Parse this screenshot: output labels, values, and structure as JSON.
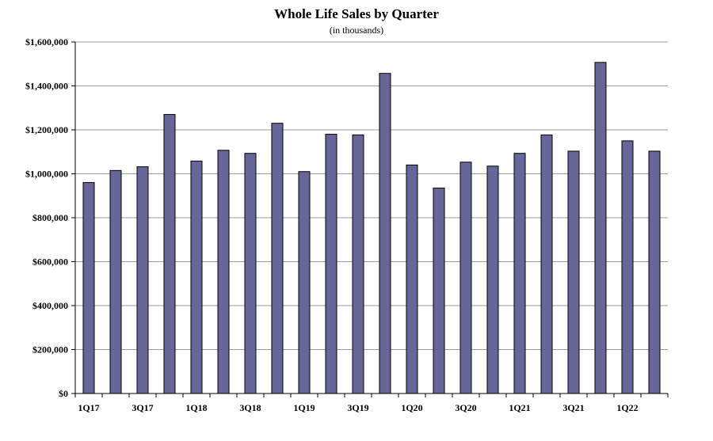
{
  "chart_data": {
    "type": "bar",
    "title": "Whole Life Sales by Quarter",
    "subtitle": "(in thousands)",
    "xlabel": "",
    "ylabel": "",
    "ylim": [
      0,
      1600000
    ],
    "yticks": [
      "$0",
      "$200,000",
      "$400,000",
      "$600,000",
      "$800,000",
      "$1,000,000",
      "$1,200,000",
      "$1,400,000",
      "$1,600,000"
    ],
    "grid": true,
    "bar_color": "#666699",
    "categories": [
      "1Q17",
      "2Q17",
      "3Q17",
      "4Q17",
      "1Q18",
      "2Q18",
      "3Q18",
      "4Q18",
      "1Q19",
      "2Q19",
      "3Q19",
      "4Q19",
      "1Q20",
      "2Q20",
      "3Q20",
      "4Q20",
      "1Q21",
      "2Q21",
      "3Q21",
      "4Q21",
      "1Q22",
      "2Q22"
    ],
    "tick_labels": [
      "1Q17",
      "",
      "3Q17",
      "",
      "1Q18",
      "",
      "3Q18",
      "",
      "1Q19",
      "",
      "3Q19",
      "",
      "1Q20",
      "",
      "3Q20",
      "",
      "1Q21",
      "",
      "3Q21",
      "",
      "1Q22",
      ""
    ],
    "values": [
      960000,
      1015000,
      1032000,
      1270000,
      1058000,
      1107000,
      1093000,
      1230000,
      1010000,
      1180000,
      1177000,
      1457000,
      1040000,
      935000,
      1053000,
      1035000,
      1093000,
      1177000,
      1103000,
      1507000,
      1150000,
      1103000
    ]
  }
}
